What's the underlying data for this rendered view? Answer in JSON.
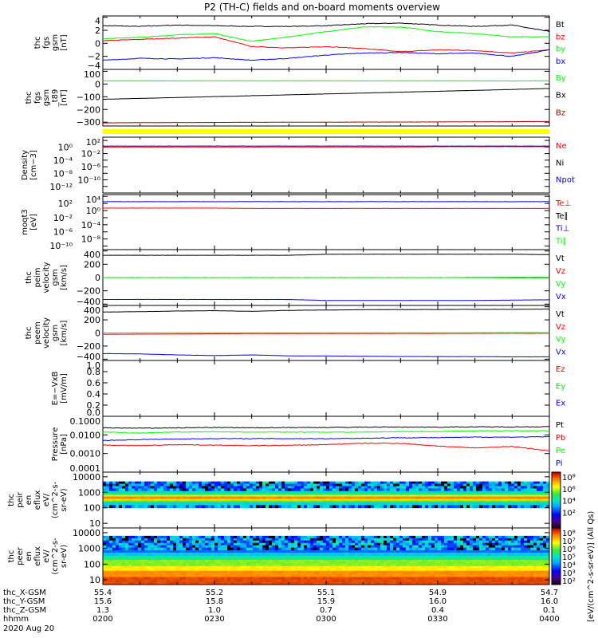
{
  "title": "P2 (TH-C) fields and on-board moments overview",
  "chart_data": [
    {
      "type": "line",
      "id": "fgs",
      "ylabel": [
        "thc",
        "fgs",
        "gsm",
        "[nT]"
      ],
      "scale": "linear",
      "ylim": [
        -4,
        4.2
      ],
      "ticks": [
        {
          "v": 4,
          "t": "4"
        },
        {
          "v": 2,
          "t": "2"
        },
        {
          "v": 0,
          "t": "0"
        },
        {
          "v": -2,
          "t": "−2"
        },
        {
          "v": -4,
          "t": "−4"
        }
      ],
      "series": [
        {
          "name": "Bt",
          "color": "#000000",
          "values": [
            2.7,
            2.6,
            2.8,
            2.7,
            2.6,
            2.6,
            2.7,
            3.0,
            3.1,
            2.8,
            2.6,
            2.8,
            1.8
          ]
        },
        {
          "name": "bz",
          "color": "#ff0000",
          "values": [
            0.4,
            0.6,
            0.8,
            1.0,
            -0.5,
            -0.7,
            -0.5,
            -0.8,
            -1.3,
            -1.0,
            -1.1,
            -1.5,
            -1.0
          ]
        },
        {
          "name": "by",
          "color": "#00ff00",
          "values": [
            0.7,
            0.9,
            1.3,
            1.5,
            0.3,
            1.0,
            1.8,
            2.5,
            2.5,
            1.8,
            1.5,
            1.0,
            1.0
          ]
        },
        {
          "name": "bx",
          "color": "#0000ff",
          "values": [
            -2.6,
            -2.3,
            -2.4,
            -2.2,
            -2.6,
            -2.3,
            -1.8,
            -1.5,
            -1.4,
            -1.6,
            -1.5,
            -2.0,
            -1.0
          ]
        }
      ]
    },
    {
      "type": "line",
      "id": "t89",
      "ylabel": [
        "thc",
        "fgs",
        "gsm",
        "_t89",
        "[nT]"
      ],
      "scale": "linear",
      "ylim": [
        -330,
        115
      ],
      "ticks": [
        {
          "v": 100,
          "t": "100"
        },
        {
          "v": 0,
          "t": "0"
        },
        {
          "v": -100,
          "t": "−100"
        },
        {
          "v": -200,
          "t": "−200"
        },
        {
          "v": -300,
          "t": "−300"
        }
      ],
      "series": [
        {
          "name": "By",
          "color": "#00ff00",
          "values": [
            25,
            25,
            25,
            25,
            25,
            25,
            25,
            25,
            25,
            25,
            25,
            24,
            25
          ]
        },
        {
          "name": "Bx",
          "color": "#000000",
          "values": [
            -120,
            -113,
            -106,
            -99,
            -92,
            -85,
            -78,
            -71,
            -64,
            -57,
            -50,
            -43,
            -35
          ]
        },
        {
          "name": "Bz",
          "color": "#b00000",
          "values": [
            -305,
            -304,
            -303,
            -302,
            -301,
            -300,
            -300,
            -299,
            -299,
            -298,
            -297,
            -296,
            -295
          ]
        }
      ]
    },
    {
      "type": "line",
      "id": "density",
      "ylabel": [
        "Density",
        "[cm−3]"
      ],
      "scale": "log",
      "ylim": [
        -14,
        3
      ],
      "ticks": [
        {
          "v": 2,
          "t": "10²"
        },
        {
          "v": 0,
          "t": "10⁰"
        },
        {
          "v": -2,
          "t": "10⁻²"
        },
        {
          "v": -4,
          "t": "10⁻⁴"
        },
        {
          "v": -6,
          "t": "10⁻⁶"
        },
        {
          "v": -8,
          "t": "10⁻⁸"
        },
        {
          "v": -10,
          "t": "10⁻¹⁰"
        },
        {
          "v": -12,
          "t": "10⁻¹²"
        }
      ],
      "series": [
        {
          "name": "Ne",
          "color": "#ff0000",
          "values": [
            0,
            0,
            0,
            0,
            0,
            0,
            0,
            0,
            0,
            0.1,
            0.1,
            0.1,
            0.1
          ]
        },
        {
          "name": "Ni",
          "color": "#000000",
          "values": []
        },
        {
          "name": "Npot",
          "color": "#0000ff",
          "values": [
            0.3,
            0.3,
            0.3,
            0.3,
            0.3,
            0.3,
            0.3,
            0.3,
            0.3,
            0.3,
            0.3,
            0.3,
            0.3
          ]
        }
      ]
    },
    {
      "type": "line",
      "id": "moqt3",
      "ylabel": [
        "moqt3",
        "[eV]"
      ],
      "scale": "log",
      "ylim": [
        -11,
        4.5
      ],
      "ticks": [
        {
          "v": 4,
          "t": "10⁴"
        },
        {
          "v": 2,
          "t": "10²"
        },
        {
          "v": 0,
          "t": "10⁰"
        },
        {
          "v": -2,
          "t": "10⁻²"
        },
        {
          "v": -4,
          "t": "10⁻⁴"
        },
        {
          "v": -6,
          "t": "10⁻⁶"
        },
        {
          "v": -8,
          "t": "10⁻⁸"
        },
        {
          "v": -10,
          "t": "10⁻¹⁰"
        }
      ],
      "series": [
        {
          "name": "Te⊥",
          "color": "#ff0000",
          "values": [
            0.7,
            0.7,
            0.7,
            0.7,
            0.6,
            0.6,
            0.6,
            0.6,
            0.6,
            0.6,
            0.6,
            0.6,
            0.6
          ]
        },
        {
          "name": "Te∥",
          "color": "#000000",
          "values": []
        },
        {
          "name": "Ti⊥",
          "color": "#0000ff",
          "values": [
            2.5,
            2.5,
            2.5,
            2.5,
            2.5,
            2.5,
            2.5,
            2.5,
            2.5,
            2.5,
            2.5,
            2.5,
            2.5
          ]
        },
        {
          "name": "Ti∥",
          "color": "#00ff00",
          "values": []
        }
      ]
    },
    {
      "type": "line",
      "id": "peim",
      "ylabel": [
        "thc",
        "peim",
        "velocity",
        "gsm",
        "[km/s]"
      ],
      "scale": "linear",
      "ylim": [
        -420,
        420
      ],
      "ticks": [
        {
          "v": 400,
          "t": "400"
        },
        {
          "v": 200,
          "t": "200"
        },
        {
          "v": 0,
          "t": "0"
        },
        {
          "v": -200,
          "t": "−200"
        },
        {
          "v": -400,
          "t": "−400"
        }
      ],
      "series": [
        {
          "name": "Vt",
          "color": "#000000",
          "values": [
            335,
            335,
            335,
            335,
            335,
            335,
            350,
            350,
            350,
            350,
            350,
            350,
            345
          ]
        },
        {
          "name": "Vz",
          "color": "#ff0000",
          "values": [
            0,
            0,
            0,
            0,
            0,
            0,
            0,
            0,
            0,
            0,
            3,
            3,
            3
          ]
        },
        {
          "name": "Vy",
          "color": "#00ff00",
          "values": [
            0,
            0,
            0,
            0,
            0,
            0,
            0,
            0,
            0,
            0,
            0,
            -5,
            -5
          ]
        },
        {
          "name": "Vx",
          "color": "#0000ff",
          "values": [
            -330,
            -330,
            -330,
            -330,
            -330,
            -330,
            -345,
            -345,
            -345,
            -345,
            -345,
            -340,
            -335
          ]
        }
      ]
    },
    {
      "type": "line",
      "id": "peem",
      "ylabel": [
        "thc",
        "peem",
        "velocity",
        "gsm",
        "[km/s]"
      ],
      "scale": "linear",
      "ylim": [
        -420,
        420
      ],
      "ticks": [
        {
          "v": 400,
          "t": "400"
        },
        {
          "v": 200,
          "t": "200"
        },
        {
          "v": 0,
          "t": "0"
        },
        {
          "v": -200,
          "t": "−200"
        },
        {
          "v": -400,
          "t": "−400"
        }
      ],
      "series": [
        {
          "name": "Vt",
          "color": "#000000",
          "values": [
            320,
            325,
            335,
            340,
            330,
            345,
            350,
            355,
            358,
            358,
            360,
            360,
            365
          ]
        },
        {
          "name": "Vz",
          "color": "#ff0000",
          "values": [
            -20,
            -18,
            -15,
            -12,
            -10,
            -10,
            -8,
            -8,
            -7,
            -7,
            -6,
            -5,
            -5
          ]
        },
        {
          "name": "Vy",
          "color": "#00ff00",
          "values": [
            0,
            2,
            3,
            3,
            3,
            3,
            3,
            3,
            3,
            3,
            4,
            5,
            5
          ]
        },
        {
          "name": "Vx",
          "color": "#0000ff",
          "values": [
            -315,
            -320,
            -335,
            -345,
            -335,
            -350,
            -352,
            -355,
            -360,
            -360,
            -362,
            -365,
            -365
          ]
        }
      ]
    },
    {
      "type": "line",
      "id": "efield",
      "ylabel": [
        "E=−VxB",
        "[mV/m]"
      ],
      "scale": "linear",
      "ylim": [
        0,
        1
      ],
      "ticks": [
        {
          "v": 1,
          "t": "1.0"
        },
        {
          "v": 0.8,
          "t": "0.8"
        },
        {
          "v": 0.6,
          "t": "0.6"
        },
        {
          "v": 0.4,
          "t": "0.4"
        },
        {
          "v": 0.2,
          "t": "0.2"
        },
        {
          "v": 0,
          "t": "0.0"
        }
      ],
      "series": [
        {
          "name": "Ez",
          "color": "#ff0000",
          "values": []
        },
        {
          "name": "Ey",
          "color": "#00ff00",
          "values": []
        },
        {
          "name": "Ex",
          "color": "#0000ff",
          "values": []
        }
      ]
    },
    {
      "type": "line",
      "id": "pressure",
      "ylabel": [
        "Pressure",
        "[nPa]"
      ],
      "scale": "log",
      "ylim": [
        -4,
        -1
      ],
      "ticks": [
        {
          "v": -1,
          "t": "0.1000"
        },
        {
          "v": -2,
          "t": "0.0100"
        },
        {
          "v": -3,
          "t": "0.0010"
        },
        {
          "v": -4,
          "t": "0.0001"
        }
      ],
      "series": [
        {
          "name": "Pt",
          "color": "#000000",
          "values": [
            -1.62,
            -1.64,
            -1.62,
            -1.6,
            -1.62,
            -1.6,
            -1.6,
            -1.58,
            -1.58,
            -1.58,
            -1.57,
            -1.57,
            -1.56
          ]
        },
        {
          "name": "Pb",
          "color": "#ff0000",
          "values": [
            -2.55,
            -2.58,
            -2.52,
            -2.55,
            -2.58,
            -2.56,
            -2.52,
            -2.45,
            -2.45,
            -2.6,
            -2.7,
            -2.62,
            -2.85
          ]
        },
        {
          "name": "Pe",
          "color": "#00ff00",
          "values": [
            -1.85,
            -1.9,
            -1.85,
            -1.83,
            -1.85,
            -1.85,
            -1.85,
            -1.85,
            -1.82,
            -1.82,
            -1.78,
            -1.78,
            -1.78
          ]
        },
        {
          "name": "Pi",
          "color": "#0000ff",
          "values": [
            -2.3,
            -2.25,
            -2.22,
            -2.2,
            -2.2,
            -2.2,
            -2.2,
            -2.18,
            -2.15,
            -2.15,
            -2.12,
            -2.12,
            -2.1
          ]
        }
      ]
    },
    {
      "type": "heatmap",
      "id": "peir",
      "ylabel": [
        "thc",
        "peir",
        "en",
        "eflux",
        "eV/",
        "(cm^2-s-",
        "sr-eV)"
      ],
      "scale": "log",
      "ylim": [
        0.7,
        4.3
      ],
      "ticks": [
        {
          "v": 4,
          "t": "10000"
        },
        {
          "v": 3,
          "t": "1000"
        },
        {
          "v": 2,
          "t": "100"
        },
        {
          "v": 1,
          "t": "10"
        }
      ],
      "bands": [
        {
          "from": 2.0,
          "to": 2.2,
          "level": "noisy"
        },
        {
          "from": 2.2,
          "to": 2.4,
          "level": 3.8
        },
        {
          "from": 2.4,
          "to": 2.5,
          "level": 5.2
        },
        {
          "from": 2.5,
          "to": 2.6,
          "level": 6.3
        },
        {
          "from": 2.6,
          "to": 2.75,
          "level": 7.0
        },
        {
          "from": 2.75,
          "to": 2.85,
          "level": 5.8
        },
        {
          "from": 2.85,
          "to": 3.0,
          "level": 4.5
        },
        {
          "from": 3.0,
          "to": 3.1,
          "level": 3.8
        },
        {
          "from": 3.1,
          "to": 3.7,
          "level": "noisy"
        }
      ],
      "colorbar": {
        "range": [
          0,
          8
        ],
        "ticks": [
          {
            "v": 8,
            "t": "10⁸"
          },
          {
            "v": 6,
            "t": "10⁶"
          },
          {
            "v": 4,
            "t": "10⁴"
          },
          {
            "v": 2,
            "t": "10²"
          }
        ]
      }
    },
    {
      "type": "heatmap",
      "id": "peer",
      "ylabel": [
        "thc",
        "peer",
        "en",
        "eflux",
        "eV/",
        "(cm^2-s-",
        "sr-eV)"
      ],
      "scale": "log",
      "ylim": [
        0.7,
        4.3
      ],
      "ticks": [
        {
          "v": 4,
          "t": "10000"
        },
        {
          "v": 3,
          "t": "1000"
        },
        {
          "v": 2,
          "t": "100"
        },
        {
          "v": 1,
          "t": "10"
        }
      ],
      "bands": [
        {
          "from": 0.7,
          "to": 1.2,
          "level": 7.6
        },
        {
          "from": 1.2,
          "to": 1.6,
          "level": 7.2
        },
        {
          "from": 1.6,
          "to": 1.9,
          "level": 6.6
        },
        {
          "from": 1.9,
          "to": 2.3,
          "level": 6.0
        },
        {
          "from": 2.3,
          "to": 2.55,
          "level": 5.3
        },
        {
          "from": 2.55,
          "to": 2.75,
          "level": 4.7
        },
        {
          "from": 2.75,
          "to": 2.9,
          "level": 4.1
        },
        {
          "from": 2.9,
          "to": 3.8,
          "level": "noisy"
        }
      ],
      "colorbar": {
        "range": [
          2,
          8
        ],
        "ticks": [
          {
            "v": 8,
            "t": "10⁸"
          },
          {
            "v": 7,
            "t": "10⁷"
          },
          {
            "v": 6,
            "t": "10⁶"
          },
          {
            "v": 5,
            "t": "10⁵"
          },
          {
            "v": 4,
            "t": "10⁴"
          },
          {
            "v": 3,
            "t": "10³"
          },
          {
            "v": 2,
            "t": "10²"
          }
        ]
      }
    }
  ],
  "colorbar_label": "[eV/(cm^2-s-sr-eV)] (All Qs)",
  "x_axis": {
    "range_minutes": [
      0,
      120
    ],
    "rows": [
      {
        "label": "thc_X-GSM",
        "values": [
          "55.4",
          "55.2",
          "55.1",
          "54.9",
          "54.7"
        ]
      },
      {
        "label": "thc_Y-GSM",
        "values": [
          "15.6",
          "15.8",
          "15.9",
          "16.0",
          "16.0"
        ]
      },
      {
        "label": "thc_Z-GSM",
        "values": [
          "1.3",
          "1.0",
          "0.7",
          "0.4",
          "0.1"
        ]
      },
      {
        "label": "hhmm",
        "values": [
          "0200",
          "0230",
          "0300",
          "0330",
          "0400"
        ]
      }
    ],
    "date": "2020 Aug 20"
  }
}
